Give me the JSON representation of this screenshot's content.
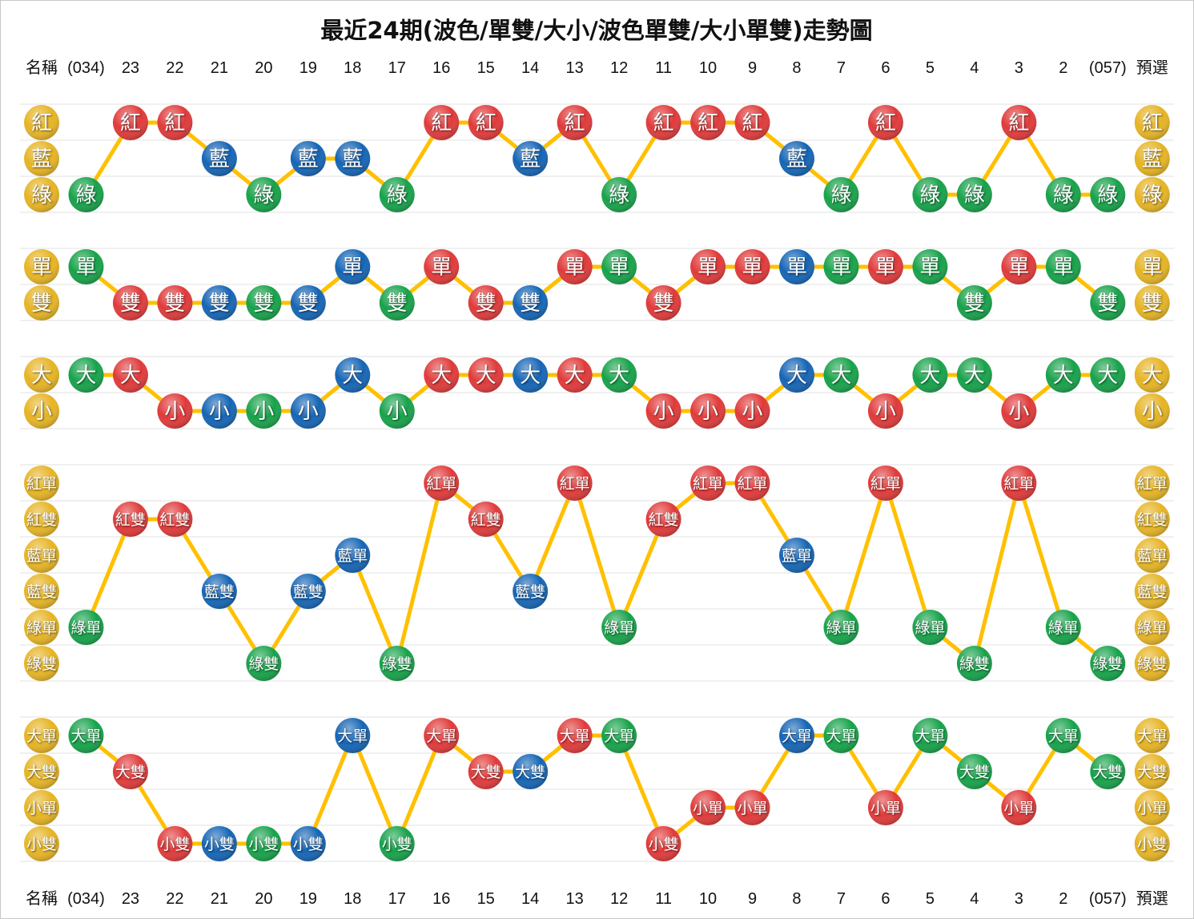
{
  "title": "最近24期(波色/單雙/大小/波色單雙/大小單雙)走勢圖",
  "header": {
    "name_label": "名稱",
    "columns": [
      "(034)",
      "23",
      "22",
      "21",
      "20",
      "19",
      "18",
      "17",
      "16",
      "15",
      "14",
      "13",
      "12",
      "11",
      "10",
      "9",
      "8",
      "7",
      "6",
      "5",
      "4",
      "3",
      "2",
      "(057)"
    ],
    "preselect_label": "預選"
  },
  "wave_colors": [
    "#e03a3a",
    "#1565b5",
    "#17a24a"
  ],
  "label_color": "#e6b424",
  "line_color": "#ffc000",
  "panels": [
    {
      "rows": [
        "紅",
        "藍",
        "綠"
      ],
      "values": [
        "綠",
        "紅",
        "紅",
        "藍",
        "綠",
        "藍",
        "藍",
        "綠",
        "紅",
        "紅",
        "藍",
        "紅",
        "綠",
        "紅",
        "紅",
        "紅",
        "藍",
        "綠",
        "紅",
        "綠",
        "綠",
        "紅",
        "綠",
        "綠"
      ]
    },
    {
      "rows": [
        "單",
        "雙"
      ],
      "values": [
        "單",
        "雙",
        "雙",
        "雙",
        "雙",
        "雙",
        "單",
        "雙",
        "單",
        "雙",
        "雙",
        "單",
        "單",
        "雙",
        "單",
        "單",
        "單",
        "單",
        "單",
        "單",
        "雙",
        "單",
        "單",
        "雙"
      ]
    },
    {
      "rows": [
        "大",
        "小"
      ],
      "values": [
        "大",
        "大",
        "小",
        "小",
        "小",
        "小",
        "大",
        "小",
        "大",
        "大",
        "大",
        "大",
        "大",
        "小",
        "小",
        "小",
        "大",
        "大",
        "小",
        "大",
        "大",
        "小",
        "大",
        "大"
      ]
    },
    {
      "rows": [
        "紅單",
        "紅雙",
        "藍單",
        "藍雙",
        "綠單",
        "綠雙"
      ],
      "values": [
        "綠單",
        "紅雙",
        "紅雙",
        "藍雙",
        "綠雙",
        "藍雙",
        "藍單",
        "綠雙",
        "紅單",
        "紅雙",
        "藍雙",
        "紅單",
        "綠單",
        "紅雙",
        "紅單",
        "紅單",
        "藍單",
        "綠單",
        "紅單",
        "綠單",
        "綠雙",
        "紅單",
        "綠單",
        "綠雙"
      ]
    },
    {
      "rows": [
        "大單",
        "大雙",
        "小單",
        "小雙"
      ],
      "values": [
        "大單",
        "大雙",
        "小雙",
        "小雙",
        "小雙",
        "小雙",
        "大單",
        "小雙",
        "大單",
        "大雙",
        "大雙",
        "大單",
        "大單",
        "小雙",
        "小單",
        "小單",
        "大單",
        "大單",
        "小單",
        "大單",
        "大雙",
        "小單",
        "大單",
        "大雙"
      ]
    }
  ]
}
